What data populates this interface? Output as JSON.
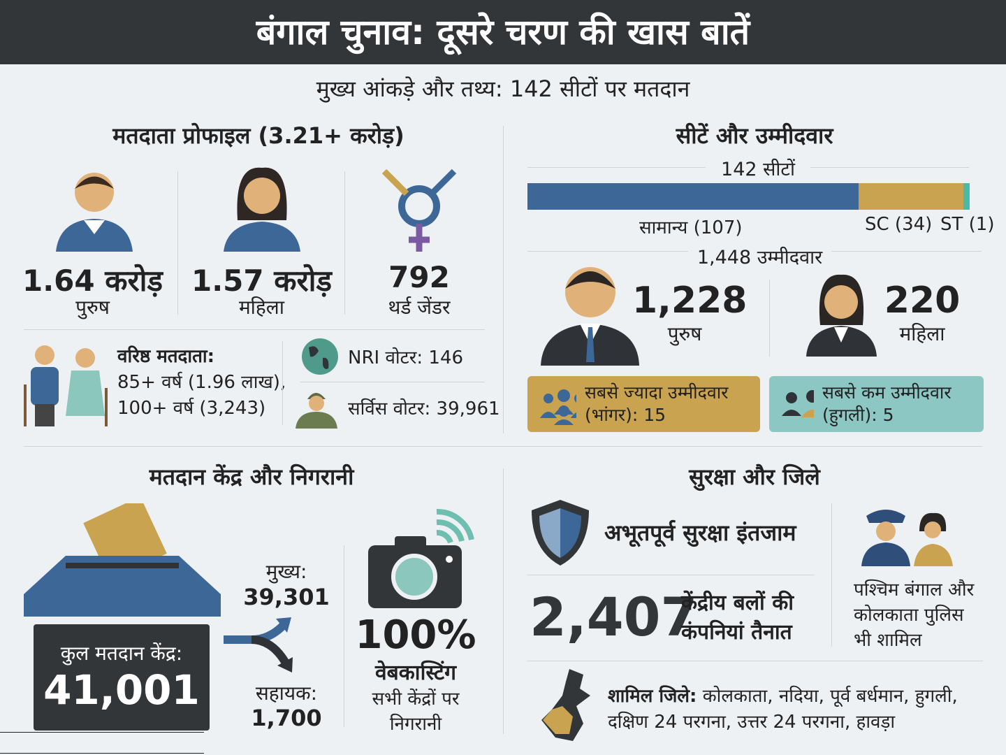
{
  "header": {
    "title": "बंगाल चुनाव: दूसरे चरण की खास बातें",
    "subtitle": "मुख्य आंकड़े और तथ्य: 142 सीटों पर मतदान"
  },
  "voter_profile": {
    "title": "मतदाता प्रोफाइल (3.21+ करोड़)",
    "male": {
      "value": "1.64 करोड़",
      "label": "पुरुष"
    },
    "female": {
      "value": "1.57 करोड़",
      "label": "महिला"
    },
    "third": {
      "value": "792",
      "label": "थर्ड जेंडर"
    },
    "senior": {
      "title": "वरिष्ठ मतदाता:",
      "line1": "85+ वर्ष (1.96 लाख),",
      "line2": "100+ वर्ष (3,243)"
    },
    "nri": "NRI वोटर: 146",
    "service": "सर्विस वोटर: 39,961"
  },
  "seats": {
    "title": "सीटें और उम्मीदवार",
    "total": "142 सीटों",
    "segments": [
      {
        "label": "सामान्य (107)",
        "value": 107,
        "color": "#3d6796"
      },
      {
        "label": "SC (34)",
        "value": 34,
        "color": "#c9a34f"
      },
      {
        "label": "ST (1)",
        "value": 1,
        "color": "#4bb8a8"
      }
    ],
    "candidates_total": "1,448 उम्मीदवार",
    "male": {
      "value": "1,228",
      "label": "पुरुष"
    },
    "female": {
      "value": "220",
      "label": "महिला"
    },
    "most": "सबसे ज्यादा उम्मीदवार (भांगर): 15",
    "least": "सबसे कम उम्मीदवार (हुगली): 5"
  },
  "booths": {
    "title": "मतदान केंद्र और निगरानी",
    "total_label": "कुल मतदान केंद्र:",
    "total": "41,001",
    "main_label": "मुख्य:",
    "main": "39,301",
    "aux_label": "सहायक:",
    "aux": "1,700",
    "webcast": "100%",
    "webcast_label": "वेबकास्टिंग",
    "webcast_sub": "सभी केंद्रों पर निगरानी"
  },
  "security": {
    "title": "सुरक्षा और जिले",
    "headline": "अभूतपूर्व सुरक्षा इंतजाम",
    "companies": "2,407",
    "companies_label": "केंद्रीय बलों की कंपनियां तैनात",
    "police": "पश्चिम बंगाल और कोलकाता पुलिस भी शामिल",
    "districts_label": "शामिल जिले:",
    "districts": "कोलकाता, नदिया, पूर्व बर्धमान, हुगली, दक्षिण 24 परगना, उत्तर 24 परगना, हावड़ा"
  }
}
